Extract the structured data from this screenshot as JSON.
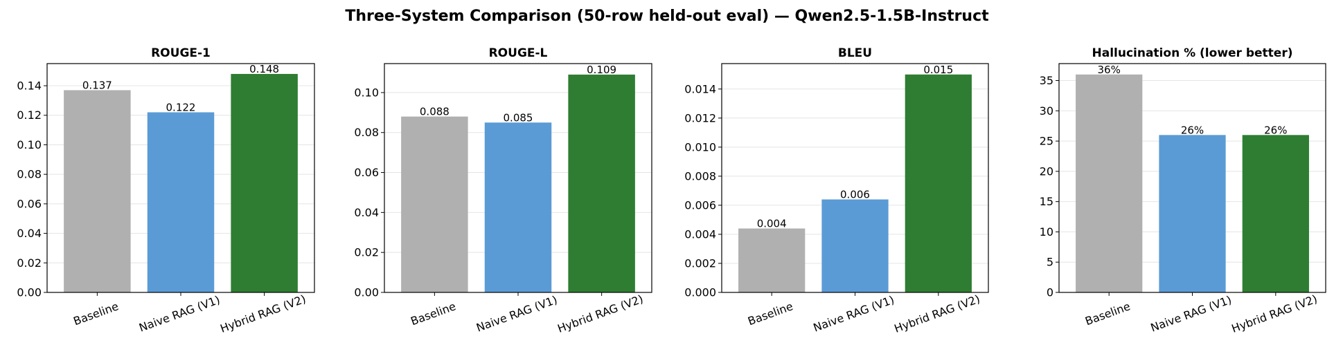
{
  "figure": {
    "title": "Three-System Comparison (50-row held-out eval) — Qwen2.5-1.5B-Instruct"
  },
  "colors": {
    "Baseline": "#b0b0b0",
    "Naive RAG (V1)": "#5b9bd5",
    "Hybrid RAG (V2)": "#2e7d32",
    "grid": "#e4e4e4",
    "axes": "#000000"
  },
  "chart_data": [
    {
      "type": "bar",
      "title": "ROUGE-1",
      "categories": [
        "Baseline",
        "Naive RAG (V1)",
        "Hybrid RAG (V2)"
      ],
      "values": [
        0.137,
        0.122,
        0.148
      ],
      "value_labels": [
        "0.137",
        "0.122",
        "0.148"
      ],
      "ylim": [
        0,
        0.155
      ],
      "yticks": [
        0.0,
        0.02,
        0.04,
        0.06,
        0.08,
        0.1,
        0.12,
        0.14
      ],
      "ytick_labels": [
        "0.00",
        "0.02",
        "0.04",
        "0.06",
        "0.08",
        "0.10",
        "0.12",
        "0.14"
      ],
      "grid": "y"
    },
    {
      "type": "bar",
      "title": "ROUGE-L",
      "categories": [
        "Baseline",
        "Naive RAG (V1)",
        "Hybrid RAG (V2)"
      ],
      "values": [
        0.088,
        0.085,
        0.109
      ],
      "value_labels": [
        "0.088",
        "0.085",
        "0.109"
      ],
      "ylim": [
        0,
        0.1145
      ],
      "yticks": [
        0.0,
        0.02,
        0.04,
        0.06,
        0.08,
        0.1
      ],
      "ytick_labels": [
        "0.00",
        "0.02",
        "0.04",
        "0.06",
        "0.08",
        "0.10"
      ],
      "grid": "y"
    },
    {
      "type": "bar",
      "title": "BLEU",
      "categories": [
        "Baseline",
        "Naive RAG (V1)",
        "Hybrid RAG (V2)"
      ],
      "values": [
        0.0044,
        0.0064,
        0.015
      ],
      "value_labels": [
        "0.004",
        "0.006",
        "0.015"
      ],
      "ylim": [
        0,
        0.01575
      ],
      "yticks": [
        0.0,
        0.002,
        0.004,
        0.006,
        0.008,
        0.01,
        0.012,
        0.014
      ],
      "ytick_labels": [
        "0.000",
        "0.002",
        "0.004",
        "0.006",
        "0.008",
        "0.010",
        "0.012",
        "0.014"
      ],
      "grid": "y"
    },
    {
      "type": "bar",
      "title": "Hallucination % (lower better)",
      "categories": [
        "Baseline",
        "Naive RAG (V1)",
        "Hybrid RAG (V2)"
      ],
      "values": [
        36,
        26,
        26
      ],
      "value_labels": [
        "36%",
        "26%",
        "26%"
      ],
      "ylim": [
        0,
        37.8
      ],
      "yticks": [
        0,
        5,
        10,
        15,
        20,
        25,
        30,
        35
      ],
      "ytick_labels": [
        "0",
        "5",
        "10",
        "15",
        "20",
        "25",
        "30",
        "35"
      ],
      "grid": "y"
    }
  ]
}
